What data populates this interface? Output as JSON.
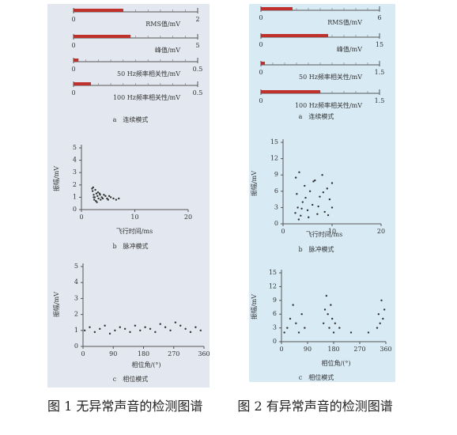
{
  "chart_data": [
    {
      "type": "gauges",
      "caption": "a　连续模式",
      "color": "#c0312b",
      "gauges": [
        {
          "label": "RMS值/mV",
          "value": 0.8,
          "xlim": [
            0,
            2
          ],
          "xticks": [
            0,
            2
          ]
        },
        {
          "label": "峰值/mV",
          "value": 2.3,
          "xlim": [
            0,
            5
          ],
          "xticks": [
            0,
            5
          ]
        },
        {
          "label": "50 Hz频率相关性/mV",
          "value": 0.02,
          "xlim": [
            0,
            0.5
          ],
          "xticks": [
            0,
            0.5
          ]
        },
        {
          "label": "100 Hz频率相关性/mV",
          "value": 0.07,
          "xlim": [
            0,
            0.5
          ],
          "xticks": [
            0,
            0.5
          ]
        }
      ]
    },
    {
      "type": "scatter",
      "caption": "b　脉冲模式",
      "xlabel": "飞行时间/ms",
      "ylabel": "振幅/mV",
      "color": "#333333",
      "xlim": [
        0,
        20
      ],
      "xticks": [
        0,
        10,
        20
      ],
      "ylim": [
        0,
        5
      ],
      "yticks": [
        0,
        1,
        2,
        3,
        4,
        5
      ],
      "x": [
        2.1,
        2.3,
        2.5,
        2.4,
        2.8,
        3.0,
        3.2,
        2.2,
        2.6,
        3.5,
        3.8,
        4.0,
        4.5,
        5.0,
        5.5,
        6.0,
        6.5,
        7.0,
        2.7,
        3.1,
        3.4,
        2.9,
        4.2,
        4.8,
        2.3,
        2.0,
        3.6,
        5.2
      ],
      "y": [
        1.5,
        1.2,
        1.0,
        0.8,
        1.3,
        1.1,
        0.9,
        1.8,
        1.6,
        1.2,
        1.0,
        0.9,
        1.1,
        0.8,
        1.0,
        0.9,
        0.8,
        0.9,
        0.7,
        1.4,
        1.3,
        0.6,
        1.2,
        0.9,
        1.0,
        1.7,
        0.8,
        1.1
      ]
    },
    {
      "type": "scatter",
      "caption": "c　相位模式",
      "xlabel": "相位角/(°)",
      "ylabel": "振幅/mV",
      "color": "#333333",
      "xlim": [
        0,
        360
      ],
      "xticks": [
        0,
        90,
        180,
        270,
        360
      ],
      "ylim": [
        0,
        5
      ],
      "yticks": [
        0,
        1,
        2,
        3,
        4,
        5
      ],
      "x": [
        5,
        20,
        35,
        50,
        65,
        80,
        95,
        110,
        125,
        140,
        155,
        170,
        185,
        200,
        215,
        230,
        245,
        260,
        275,
        290,
        305,
        320,
        335,
        350
      ],
      "y": [
        1.0,
        1.2,
        0.9,
        1.1,
        1.3,
        0.8,
        1.0,
        1.2,
        1.1,
        0.9,
        1.3,
        1.0,
        1.2,
        1.1,
        0.9,
        1.4,
        1.2,
        1.0,
        1.5,
        1.3,
        1.1,
        0.9,
        1.2,
        1.0
      ]
    },
    {
      "type": "gauges",
      "caption": "a　连续模式",
      "color": "#c0312b",
      "gauges": [
        {
          "label": "RMS值/mV",
          "value": 1.6,
          "xlim": [
            0,
            6
          ],
          "xticks": [
            0,
            6
          ]
        },
        {
          "label": "峰值/mV",
          "value": 8.5,
          "xlim": [
            0,
            15
          ],
          "xticks": [
            0,
            15
          ]
        },
        {
          "label": "50 Hz频率相关性/mV",
          "value": 0.05,
          "xlim": [
            0,
            1.5
          ],
          "xticks": [
            0,
            1.5
          ]
        },
        {
          "label": "100 Hz频率相关性/mV",
          "value": 0.75,
          "xlim": [
            0,
            1.5
          ],
          "xticks": [
            0,
            1.5
          ]
        }
      ]
    },
    {
      "type": "scatter",
      "caption": "b　脉冲模式",
      "xlabel": "飞行时间/ms",
      "ylabel": "振幅/mV",
      "color": "#333333",
      "xlim": [
        0,
        20
      ],
      "xticks": [
        0,
        10,
        20
      ],
      "ylim": [
        0,
        15
      ],
      "yticks": [
        0,
        3,
        6,
        9,
        12,
        15
      ],
      "x": [
        2.5,
        2.8,
        3.0,
        3.3,
        3.6,
        4.0,
        4.4,
        5.0,
        5.5,
        6.0,
        6.5,
        7.0,
        7.5,
        8.0,
        8.5,
        9.0,
        9.5,
        10.0,
        2.6,
        3.2,
        3.8,
        4.6,
        5.2,
        6.2,
        7.2,
        8.2,
        9.2,
        10.0
      ],
      "y": [
        2.0,
        5.5,
        3.0,
        9.5,
        1.5,
        4.0,
        7.0,
        2.5,
        6.0,
        3.5,
        8.0,
        1.8,
        5.0,
        9.0,
        2.2,
        6.5,
        4.5,
        7.5,
        8.5,
        0.8,
        2.8,
        4.8,
        1.2,
        7.8,
        3.2,
        5.8,
        1.6,
        3.0
      ]
    },
    {
      "type": "scatter",
      "caption": "c　相位模式",
      "xlabel": "相位角/(°)",
      "ylabel": "振幅/mV",
      "color": "#333333",
      "xlim": [
        0,
        360
      ],
      "xticks": [
        0,
        90,
        180,
        270,
        360
      ],
      "ylim": [
        0,
        15
      ],
      "yticks": [
        0,
        3,
        6,
        9,
        12,
        15
      ],
      "x": [
        20,
        30,
        40,
        50,
        60,
        70,
        80,
        145,
        150,
        155,
        160,
        165,
        170,
        175,
        180,
        185,
        200,
        240,
        300,
        330,
        335,
        340,
        345,
        350,
        355,
        10
      ],
      "y": [
        3,
        5,
        8,
        4,
        2,
        6,
        3,
        4,
        7,
        10,
        6,
        3,
        8,
        5,
        2,
        4,
        3,
        2,
        2,
        3,
        6,
        4,
        9,
        5,
        7,
        2
      ]
    }
  ],
  "figure_captions": [
    "图 1 无异常声音的检测图谱",
    "图 2 有异常声音的检测图谱"
  ]
}
